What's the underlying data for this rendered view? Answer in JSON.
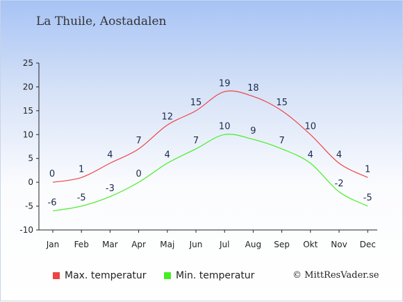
{
  "title": "La Thuile, Aostadalen",
  "copyright": "© MittResVader.se",
  "colors": {
    "max": "#ee4444",
    "min": "#44ee22"
  },
  "legend": {
    "max_label": "Max. temperatur",
    "min_label": "Min. temperatur"
  },
  "chart_data": {
    "type": "line",
    "categories": [
      "Jan",
      "Feb",
      "Mar",
      "Apr",
      "Maj",
      "Jun",
      "Jul",
      "Aug",
      "Sep",
      "Okt",
      "Nov",
      "Dec"
    ],
    "series": [
      {
        "name": "Max. temperatur",
        "values": [
          0,
          1,
          4,
          7,
          12,
          15,
          19,
          18,
          15,
          10,
          4,
          1
        ]
      },
      {
        "name": "Min. temperatur",
        "values": [
          -6,
          -5,
          -3,
          0,
          4,
          7,
          10,
          9,
          7,
          4,
          -2,
          -5
        ]
      }
    ],
    "ylim": [
      -10,
      25
    ],
    "yticks": [
      25,
      20,
      15,
      10,
      5,
      0,
      -5,
      -10
    ],
    "legend_position": "bottom-left",
    "grid": false
  }
}
